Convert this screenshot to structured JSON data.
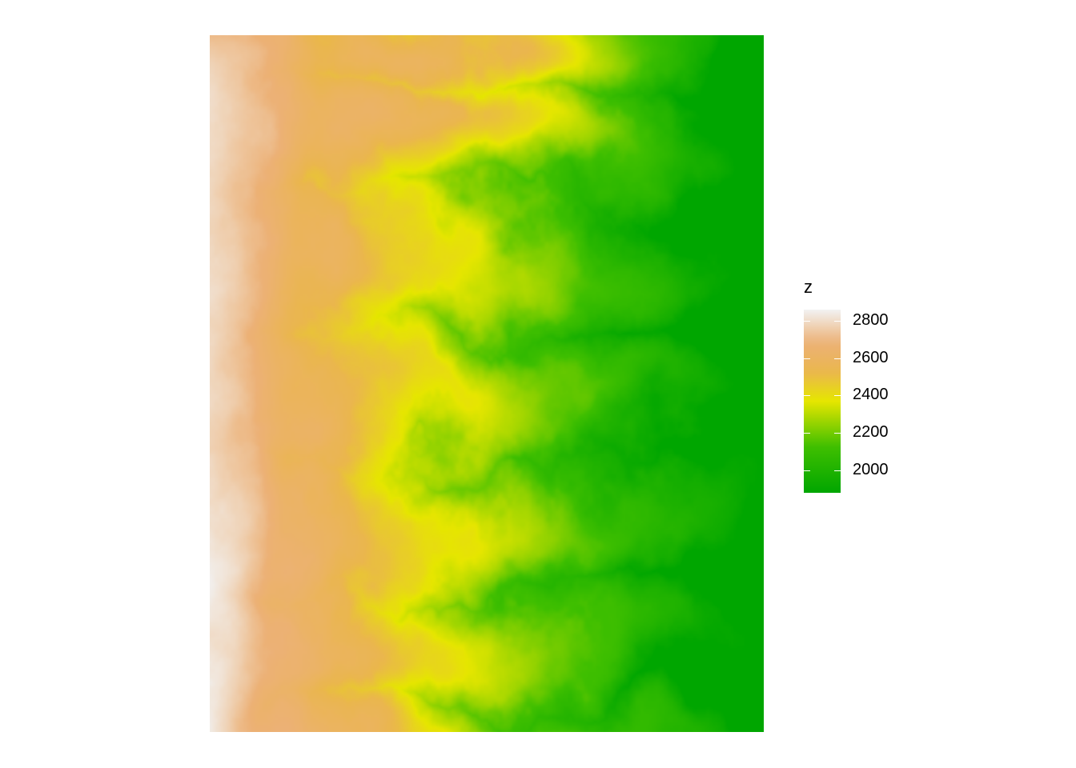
{
  "map": {
    "variable": "z",
    "z_range": [
      1880,
      2860
    ],
    "colors": {
      "low": "#00a600",
      "mid_low": "#3fbf00",
      "mid": "#e6e600",
      "mid_high": "#eab64e",
      "high_mid": "#ecb176",
      "high": "#f2f2f2"
    }
  },
  "legend": {
    "title": "z",
    "ticks": [
      {
        "value": 2800,
        "label": "2800"
      },
      {
        "value": 2600,
        "label": "2600"
      },
      {
        "value": 2400,
        "label": "2400"
      },
      {
        "value": 2200,
        "label": "2200"
      },
      {
        "value": 2000,
        "label": "2000"
      }
    ]
  }
}
